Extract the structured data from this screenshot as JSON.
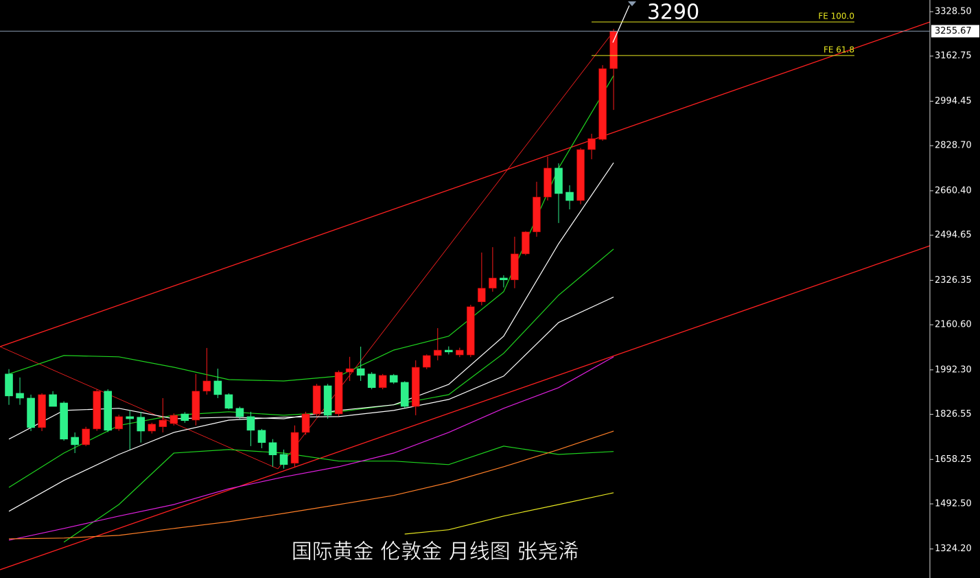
{
  "chart_data": {
    "type": "candlestick",
    "title": "国际黄金 伦敦金 月线图 张尧浠",
    "ylim": [
      1216,
      3372
    ],
    "yticks": [
      {
        "value": 3328.5,
        "label": "3328.50"
      },
      {
        "value": 3162.75,
        "label": "3162.75"
      },
      {
        "value": 2994.45,
        "label": "2994.45"
      },
      {
        "value": 2828.7,
        "label": "2828.70"
      },
      {
        "value": 2660.4,
        "label": "2660.40"
      },
      {
        "value": 2494.65,
        "label": "2494.65"
      },
      {
        "value": 2326.35,
        "label": "2326.35"
      },
      {
        "value": 2160.6,
        "label": "2160.60"
      },
      {
        "value": 1992.3,
        "label": "1992.30"
      },
      {
        "value": 1826.55,
        "label": "1826.55"
      },
      {
        "value": 1658.25,
        "label": "1658.25"
      },
      {
        "value": 1492.5,
        "label": "1492.50"
      },
      {
        "value": 1324.2,
        "label": "1324.20"
      }
    ],
    "current_price": {
      "value": 3255.67,
      "label": "3255.67"
    },
    "up_color": "#ff1a1a",
    "down_color": "#2ef08a",
    "ohlc": [
      [
        1977,
        1995,
        1862,
        1895
      ],
      [
        1905,
        1964,
        1862,
        1887
      ],
      [
        1887,
        1900,
        1764,
        1777
      ],
      [
        1777,
        1905,
        1764,
        1900
      ],
      [
        1900,
        1913,
        1856,
        1856
      ],
      [
        1869,
        1875,
        1728,
        1734
      ],
      [
        1741,
        1759,
        1682,
        1713
      ],
      [
        1713,
        1780,
        1708,
        1772
      ],
      [
        1772,
        1920,
        1765,
        1913
      ],
      [
        1913,
        1920,
        1760,
        1767
      ],
      [
        1772,
        1825,
        1765,
        1818
      ],
      [
        1818,
        1841,
        1695,
        1810
      ],
      [
        1816,
        1836,
        1721,
        1764
      ],
      [
        1764,
        1795,
        1755,
        1790
      ],
      [
        1780,
        1887,
        1759,
        1805
      ],
      [
        1792,
        1830,
        1785,
        1823
      ],
      [
        1828,
        1835,
        1795,
        1803
      ],
      [
        1805,
        1977,
        1785,
        1913
      ],
      [
        1913,
        2074,
        1900,
        1951
      ],
      [
        1951,
        1997,
        1887,
        1900
      ],
      [
        1900,
        1905,
        1845,
        1849
      ],
      [
        1849,
        1855,
        1810,
        1818
      ],
      [
        1818,
        1836,
        1708,
        1767
      ],
      [
        1767,
        1772,
        1700,
        1721
      ],
      [
        1721,
        1734,
        1631,
        1675
      ],
      [
        1677,
        1695,
        1624,
        1639
      ],
      [
        1644,
        1785,
        1631,
        1759
      ],
      [
        1759,
        1836,
        1750,
        1828
      ],
      [
        1828,
        1940,
        1820,
        1933
      ],
      [
        1933,
        1940,
        1810,
        1823
      ],
      [
        1828,
        1990,
        1820,
        1984
      ],
      [
        1984,
        2041,
        1951,
        1997
      ],
      [
        1997,
        2079,
        1951,
        1972
      ],
      [
        1977,
        1984,
        1920,
        1926
      ],
      [
        1926,
        1977,
        1920,
        1972
      ],
      [
        1972,
        1977,
        1940,
        1946
      ],
      [
        1946,
        1950,
        1850,
        1856
      ],
      [
        1856,
        2028,
        1823,
        2002
      ],
      [
        2002,
        2050,
        1995,
        2046
      ],
      [
        2046,
        2148,
        2028,
        2066
      ],
      [
        2066,
        2080,
        2050,
        2059
      ],
      [
        2048,
        2075,
        2040,
        2066
      ],
      [
        2048,
        2235,
        2040,
        2228
      ],
      [
        2246,
        2430,
        2233,
        2297
      ],
      [
        2297,
        2450,
        2284,
        2335
      ],
      [
        2335,
        2345,
        2300,
        2328
      ],
      [
        2328,
        2489,
        2297,
        2425
      ],
      [
        2425,
        2510,
        2420,
        2507
      ],
      [
        2507,
        2694,
        2489,
        2637
      ],
      [
        2637,
        2788,
        2624,
        2745
      ],
      [
        2745,
        2763,
        2540,
        2650
      ],
      [
        2655,
        2681,
        2591,
        2624
      ],
      [
        2624,
        2820,
        2610,
        2814
      ],
      [
        2814,
        2873,
        2778,
        2855
      ],
      [
        2852,
        3129,
        2847,
        3116
      ],
      [
        3116,
        3264,
        2962,
        3255.67
      ]
    ],
    "lines": [
      {
        "color": "#1fd51f",
        "x": [
          0,
          5,
          10,
          15,
          20,
          25,
          30,
          35,
          40,
          45,
          50,
          55
        ],
        "values": [
          1977,
          2046,
          2041,
          2002,
          1956,
          1951,
          1969,
          2066,
          2118,
          2284,
          2745,
          3090
        ]
      },
      {
        "color": "#1fd51f",
        "x": [
          5,
          10,
          15,
          20,
          25,
          30,
          35,
          40,
          45,
          50,
          55
        ],
        "values": [
          1350,
          1490,
          1682,
          1695,
          1682,
          1652,
          1652,
          1639,
          1708,
          1677,
          1688
        ]
      },
      {
        "color": "#1fd51f",
        "x": [
          0,
          5,
          10,
          15,
          20,
          25,
          30,
          35,
          40,
          45,
          50,
          55
        ],
        "values": [
          1554,
          1682,
          1785,
          1823,
          1836,
          1823,
          1836,
          1862,
          1900,
          2054,
          2271,
          2443
        ]
      },
      {
        "color": "#ffffff",
        "x": [
          0,
          5,
          10,
          15,
          20,
          25,
          30,
          35,
          40,
          45,
          50,
          55
        ],
        "values": [
          1734,
          1841,
          1849,
          1810,
          1816,
          1810,
          1841,
          1862,
          1938,
          2118,
          2463,
          2765
        ]
      },
      {
        "color": "#ffffff",
        "x": [
          0,
          5,
          10,
          15,
          20,
          25,
          30,
          35,
          40,
          45,
          50,
          55
        ],
        "values": [
          1465,
          1580,
          1677,
          1759,
          1805,
          1816,
          1818,
          1841,
          1882,
          1969,
          2169,
          2264
        ]
      },
      {
        "color": "#e020e0",
        "x": [
          0,
          5,
          10,
          15,
          20,
          25,
          30,
          35,
          40,
          45,
          50,
          55
        ],
        "values": [
          1357,
          1401,
          1447,
          1490,
          1549,
          1593,
          1631,
          1682,
          1759,
          1849,
          1926,
          2041
        ]
      },
      {
        "color": "#ff7f27",
        "x": [
          0,
          5,
          10,
          15,
          20,
          25,
          30,
          35,
          40,
          45,
          50,
          55
        ],
        "values": [
          1362,
          1365,
          1375,
          1401,
          1426,
          1457,
          1490,
          1524,
          1572,
          1631,
          1695,
          1764
        ]
      },
      {
        "color": "#e8e820",
        "x": [
          36,
          40,
          45,
          50,
          55
        ],
        "values": [
          1380,
          1396,
          1447,
          1490,
          1534
        ]
      }
    ],
    "fe_levels": [
      {
        "label": "FE 100.0",
        "value": 3290
      },
      {
        "label": "FE 61.8",
        "value": 3165
      }
    ],
    "target": 3290,
    "fe_color": "#e8e820"
  }
}
